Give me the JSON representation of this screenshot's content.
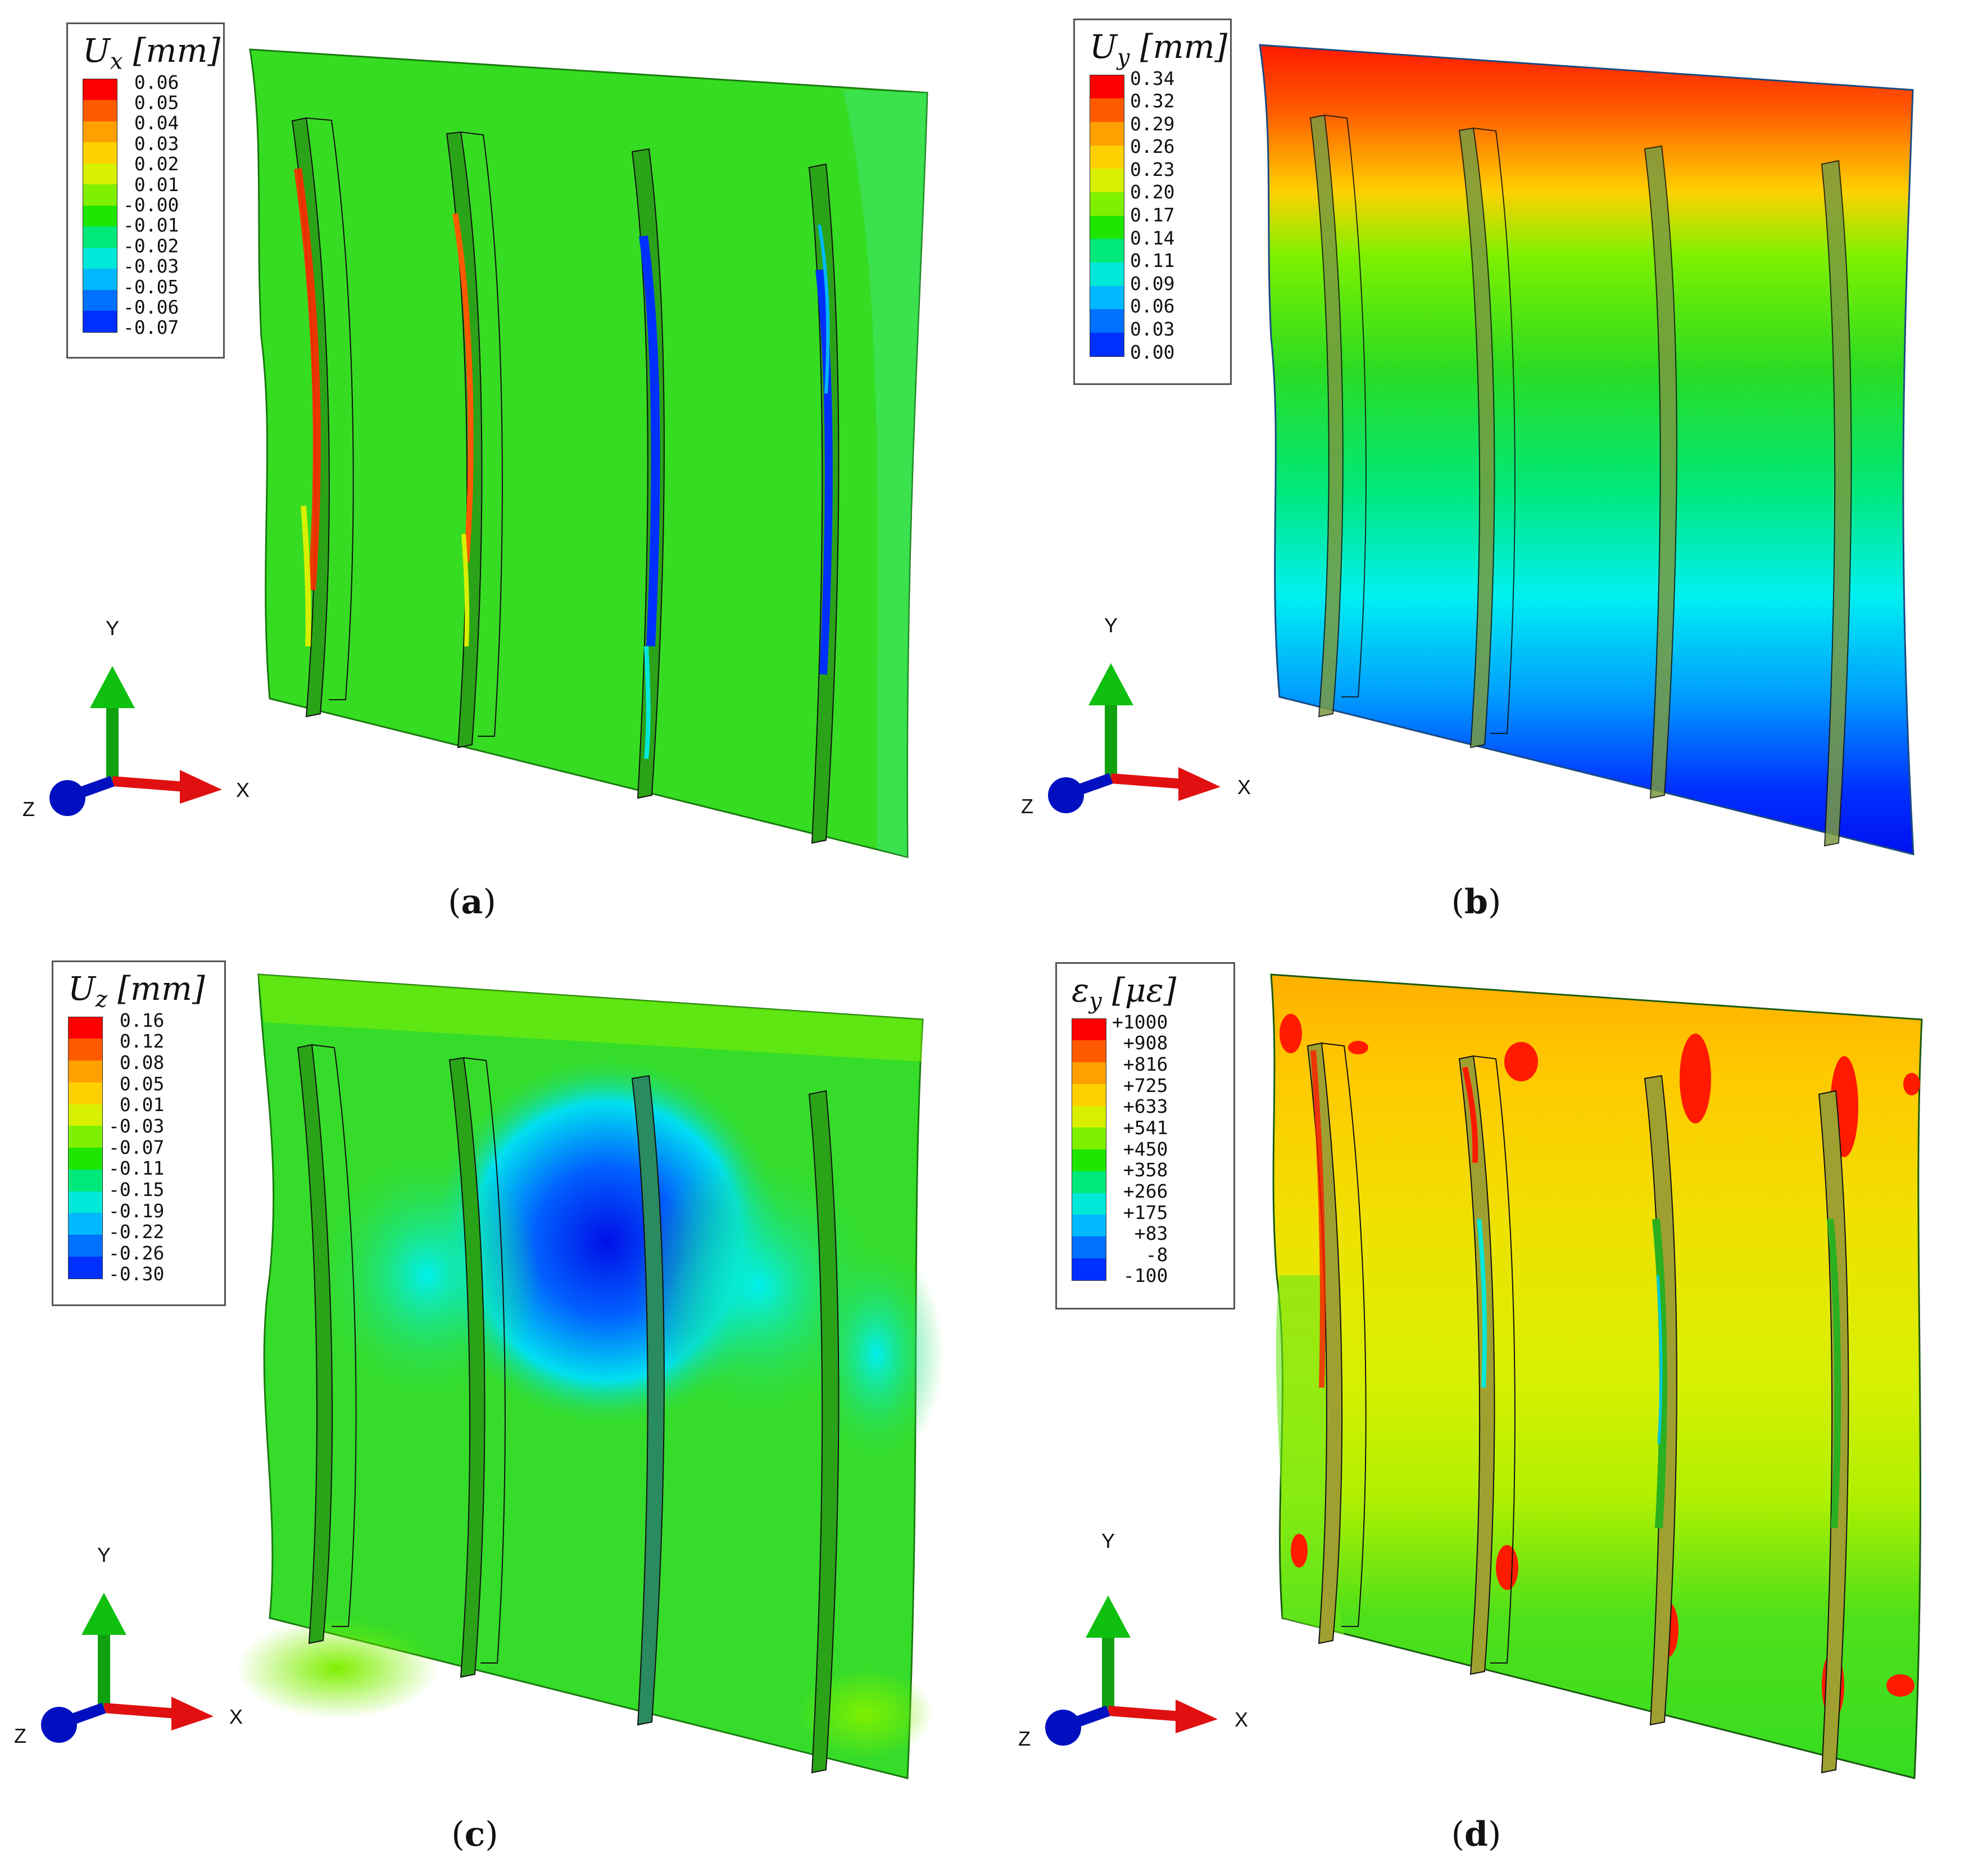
{
  "panels": [
    {
      "id": "a",
      "caption_letter": "a",
      "legend": {
        "symbol": "U",
        "subscript": "x",
        "unit": "[mm]",
        "ticks": [
          "0.06",
          "0.05",
          "0.04",
          "0.03",
          "0.02",
          "0.01",
          "-0.00",
          "-0.01",
          "-0.02",
          "-0.03",
          "-0.05",
          "-0.06",
          "-0.07"
        ]
      }
    },
    {
      "id": "b",
      "caption_letter": "b",
      "legend": {
        "symbol": "U",
        "subscript": "y",
        "unit": "[mm]",
        "ticks": [
          "0.34",
          "0.32",
          "0.29",
          "0.26",
          "0.23",
          "0.20",
          "0.17",
          "0.14",
          "0.11",
          "0.09",
          "0.06",
          "0.03",
          "0.00"
        ]
      }
    },
    {
      "id": "c",
      "caption_letter": "c",
      "legend": {
        "symbol": "U",
        "subscript": "z",
        "unit": "[mm]",
        "ticks": [
          "0.16",
          "0.12",
          "0.08",
          "0.05",
          "0.01",
          "-0.03",
          "-0.07",
          "-0.11",
          "-0.15",
          "-0.19",
          "-0.22",
          "-0.26",
          "-0.30"
        ]
      }
    },
    {
      "id": "d",
      "caption_letter": "d",
      "legend": {
        "symbol": "ε",
        "subscript": "y",
        "unit": "[με]",
        "ticks": [
          "+1000",
          "+908",
          "+816",
          "+725",
          "+633",
          "+541",
          "+450",
          "+358",
          "+266",
          "+175",
          "+83",
          "-8",
          "-100"
        ]
      }
    }
  ],
  "triad": {
    "x_label": "X",
    "y_label": "Y",
    "z_label": "Z"
  },
  "colormap": [
    "#ff0000",
    "#ff5a00",
    "#ffa000",
    "#ffd000",
    "#d8f000",
    "#7ff000",
    "#1ee600",
    "#00e87a",
    "#00e8d8",
    "#00b8ff",
    "#0070ff",
    "#0030ff",
    "#0000ff"
  ]
}
